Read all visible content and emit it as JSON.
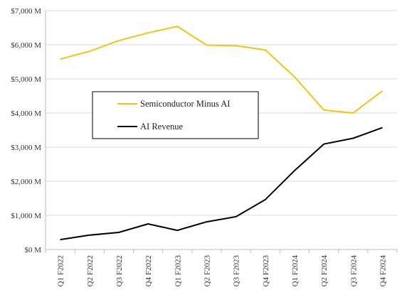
{
  "chart_data": {
    "type": "line",
    "title": "",
    "xlabel": "",
    "ylabel": "",
    "categories": [
      "Q1 F2022",
      "Q2 F2022",
      "Q3 F2022",
      "Q4 F2022",
      "Q1 F2023",
      "Q2 F2023",
      "Q3 F2023",
      "Q4 F2023",
      "Q1 F2024",
      "Q2 F2024",
      "Q3 F2024",
      "Q4 F2024"
    ],
    "ylim": [
      0,
      7000
    ],
    "yticks": [
      0,
      1000,
      2000,
      3000,
      4000,
      5000,
      6000,
      7000
    ],
    "ytick_labels": [
      "$0 M",
      "$1,000 M",
      "$2,000 M",
      "$3,000 M",
      "$4,000 M",
      "$5,000 M",
      "$6,000 M",
      "$7,000 M"
    ],
    "grid": true,
    "legend_position": "middle-left",
    "series": [
      {
        "name": "Semiconductor Minus AI",
        "color": "#f2c418",
        "values": [
          5580,
          5810,
          6120,
          6350,
          6540,
          5990,
          5970,
          5850,
          5060,
          4090,
          4000,
          4650
        ]
      },
      {
        "name": "AI Revenue",
        "color": "#000000",
        "values": [
          290,
          420,
          500,
          750,
          560,
          810,
          960,
          1460,
          2310,
          3090,
          3260,
          3570
        ]
      }
    ]
  }
}
